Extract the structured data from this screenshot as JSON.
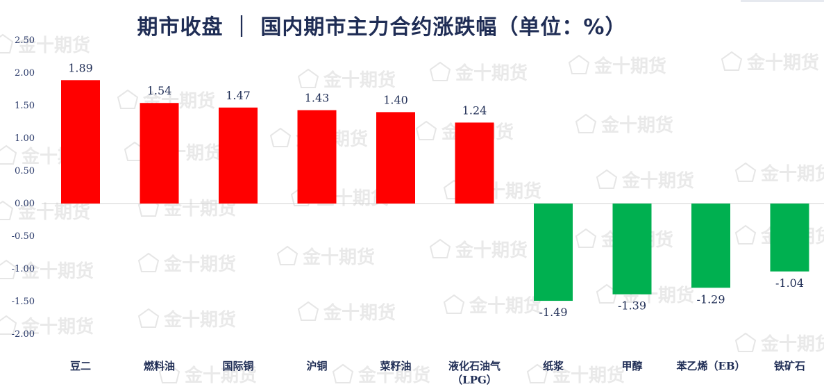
{
  "title": "期市收盘 ｜ 国内期市主力合约涨跌幅（单位：%）",
  "watermark": "金十期货",
  "colors": {
    "up": "#ff0000",
    "down": "#00b050",
    "text": "#1f2d55",
    "axis": "#d0d0d0"
  },
  "chart_data": {
    "type": "bar",
    "title": "期市收盘 ｜ 国内期市主力合约涨跌幅（单位：%）",
    "categories": [
      "豆二",
      "燃料油",
      "国际铜",
      "沪铜",
      "菜籽油",
      "液化石油气（LPG）",
      "纸浆",
      "甲醇",
      "苯乙烯（EB）",
      "铁矿石"
    ],
    "category_lines": [
      [
        "豆二"
      ],
      [
        "燃料油"
      ],
      [
        "国际铜"
      ],
      [
        "沪铜"
      ],
      [
        "菜籽油"
      ],
      [
        "液化石油气",
        "（LPG）"
      ],
      [
        "纸浆"
      ],
      [
        "甲醇"
      ],
      [
        "苯乙烯（EB）"
      ],
      [
        "铁矿石"
      ]
    ],
    "values": [
      1.89,
      1.54,
      1.47,
      1.43,
      1.4,
      1.24,
      -1.49,
      -1.39,
      -1.29,
      -1.04
    ],
    "value_labels": [
      "1.89",
      "1.54",
      "1.47",
      "1.43",
      "1.40",
      "1.24",
      "-1.49",
      "-1.39",
      "-1.29",
      "-1.04"
    ],
    "yticks": [
      2.5,
      2.0,
      1.5,
      1.0,
      0.5,
      0.0,
      -0.5,
      -1.0,
      -1.5,
      -2.0
    ],
    "ytick_labels": [
      "2.50",
      "2.00",
      "1.50",
      "1.00",
      "0.50",
      "0.00",
      "-0.50",
      "-1.00",
      "-1.50",
      "-2.00"
    ],
    "ylim": [
      -2.0,
      2.5
    ],
    "grid": false,
    "legend": "none",
    "xlabel": "",
    "ylabel": ""
  }
}
